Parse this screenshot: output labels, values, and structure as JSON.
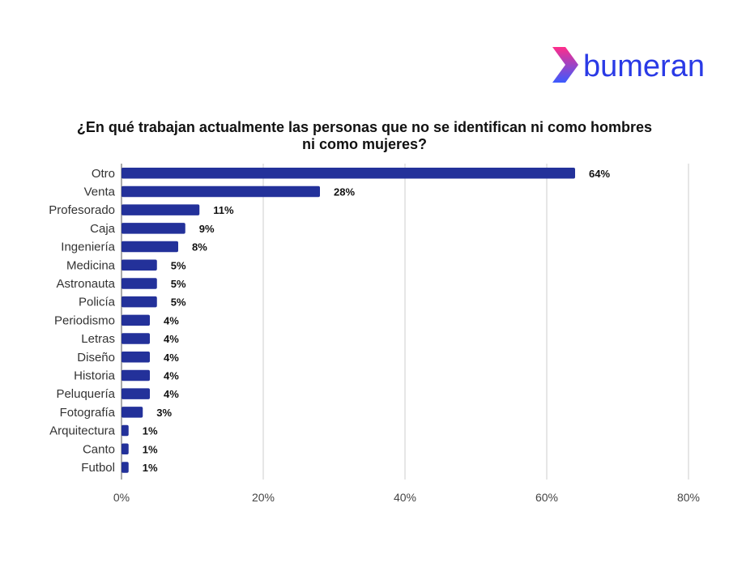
{
  "brand": {
    "name": "bumeran",
    "colors": {
      "chevron_top": "#ff2d8a",
      "chevron_bottom": "#3b5bff",
      "text": "#2a3ae6"
    }
  },
  "chart_data": {
    "type": "bar",
    "orientation": "horizontal",
    "title": "¿En qué trabajan actualmente las personas que no se identifican ni como hombres\nni como mujeres?",
    "categories": [
      "Otro",
      "Venta",
      "Profesorado",
      "Caja",
      "Ingeniería",
      "Medicina",
      "Astronauta",
      "Policía",
      "Periodismo",
      "Letras",
      "Diseño",
      "Historia",
      "Peluquería",
      "Fotografía",
      "Arquitectura",
      "Canto",
      "Futbol"
    ],
    "values": [
      64,
      28,
      11,
      9,
      8,
      5,
      5,
      5,
      4,
      4,
      4,
      4,
      4,
      3,
      1,
      1,
      1
    ],
    "value_labels": [
      "64%",
      "28%",
      "11%",
      "9%",
      "8%",
      "5%",
      "5%",
      "5%",
      "4%",
      "4%",
      "4%",
      "4%",
      "4%",
      "3%",
      "1%",
      "1%",
      "1%"
    ],
    "xlim": [
      0,
      80
    ],
    "xticks": [
      0,
      20,
      40,
      60,
      80
    ],
    "xtick_labels": [
      "0%",
      "20%",
      "40%",
      "60%",
      "80%"
    ],
    "xlabel": "",
    "ylabel": "",
    "bar_color": "#23319a",
    "grid": true,
    "legend": "none"
  }
}
